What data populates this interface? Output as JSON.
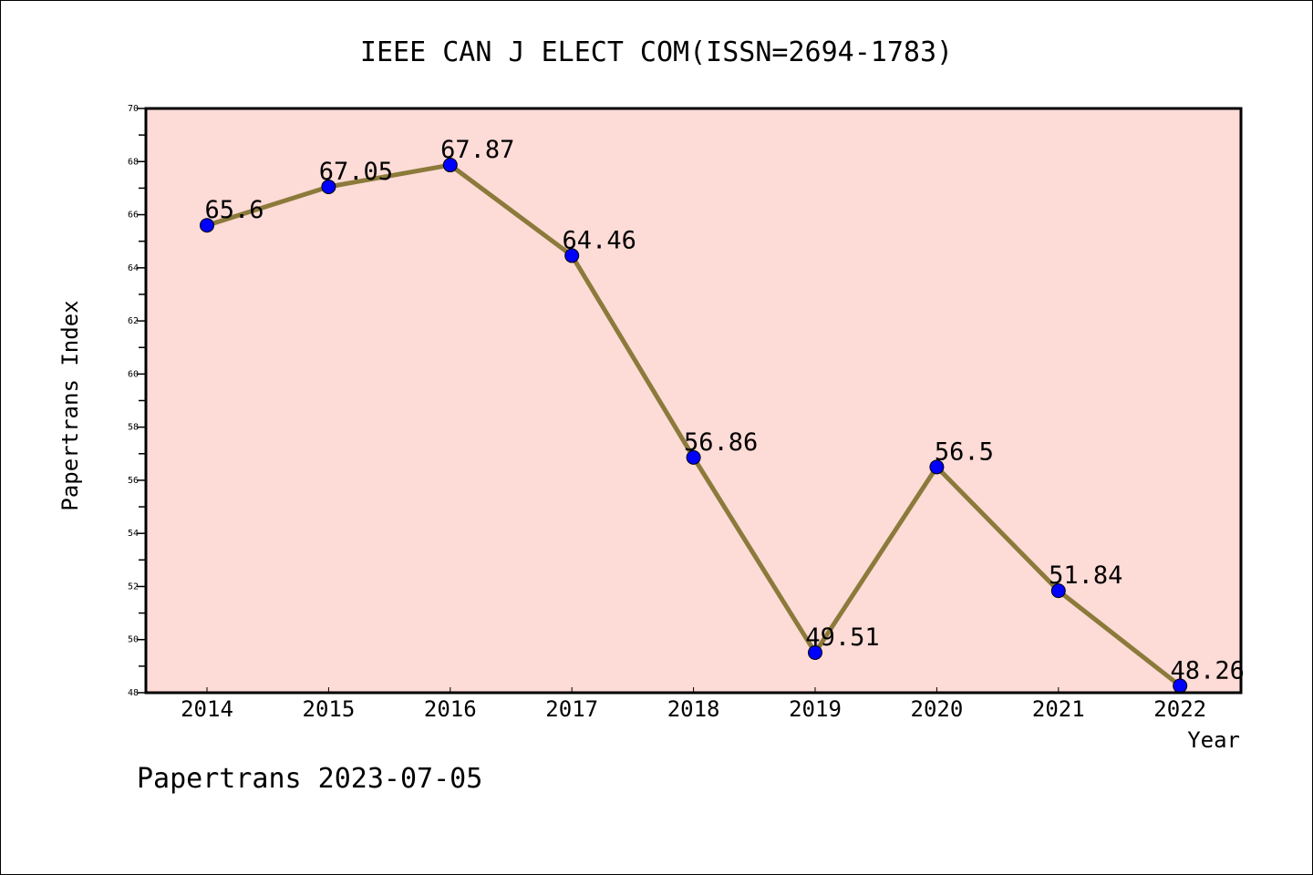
{
  "chart_data": {
    "type": "line",
    "title": "IEEE CAN J ELECT COM(ISSN=2694-1783)",
    "xlabel": "Year",
    "ylabel": "Papertrans Index",
    "categories": [
      "2014",
      "2015",
      "2016",
      "2017",
      "2018",
      "2019",
      "2020",
      "2021",
      "2022"
    ],
    "series": [
      {
        "name": "Papertrans Index",
        "values": [
          65.6,
          67.05,
          67.87,
          64.46,
          56.86,
          49.51,
          56.5,
          51.84,
          48.26
        ]
      }
    ],
    "data_labels": [
      "65.6",
      "67.05",
      "67.87",
      "64.46",
      "56.86",
      "49.51",
      "56.5",
      "51.84",
      "48.26"
    ],
    "ylim": [
      48,
      70
    ],
    "yticks": [
      48,
      50,
      52,
      54,
      56,
      58,
      60,
      62,
      64,
      66,
      68,
      70
    ],
    "grid": false,
    "colors": {
      "background": "#fddbd7",
      "line": "#8b7a3a",
      "marker": "#0000ff"
    }
  },
  "footer": "Papertrans 2023-07-05"
}
